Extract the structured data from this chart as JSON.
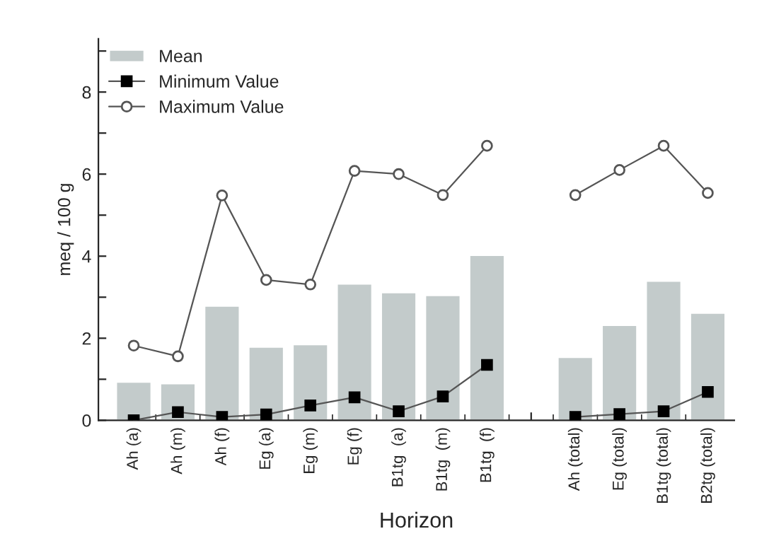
{
  "chart_data": {
    "type": "bar",
    "xlabel": "Horizon",
    "ylabel": "meq / 100 g",
    "categories": [
      "Ah (a)",
      "Ah (m)",
      "Ah (f)",
      "Eg (a)",
      "Eg (m)",
      "Eg (f)",
      "B1tg  (a)",
      "B1tg  (m)",
      "B1tg  (f)",
      null,
      "Ah (total)",
      "Eg (total)",
      "B1tg (total)",
      "B2tg (total)"
    ],
    "series": [
      {
        "name": "Mean",
        "color": "#c3cbcb",
        "values": [
          0.94,
          0.9,
          2.79,
          1.79,
          1.85,
          3.33,
          3.12,
          3.05,
          4.03,
          null,
          1.54,
          2.32,
          3.4,
          2.62
        ]
      },
      {
        "name": "Minimum Value",
        "type": "line",
        "color": "#555555",
        "marker": "square",
        "values": [
          0,
          0.2,
          0.08,
          0.14,
          0.36,
          0.56,
          0.22,
          0.58,
          1.35,
          null,
          0.08,
          0.15,
          0.22,
          0.69
        ]
      },
      {
        "name": "Maximum Value",
        "type": "line",
        "color": "#555555",
        "marker": "circle",
        "values": [
          1.82,
          1.56,
          5.48,
          3.42,
          3.31,
          6.08,
          6.0,
          5.49,
          6.69,
          null,
          5.49,
          6.1,
          6.69,
          5.54
        ]
      }
    ],
    "ylim": [
      0,
      9.3
    ],
    "yticks": [
      0,
      {
        "value": 1,
        "label": null
      },
      2,
      {
        "value": 3,
        "label": null
      },
      4,
      {
        "value": 5,
        "label": null
      },
      6,
      {
        "value": 7,
        "label": null
      },
      8,
      {
        "value": 9,
        "label": null
      }
    ],
    "legend": "top left",
    "grid": false,
    "line_style": "solid"
  }
}
